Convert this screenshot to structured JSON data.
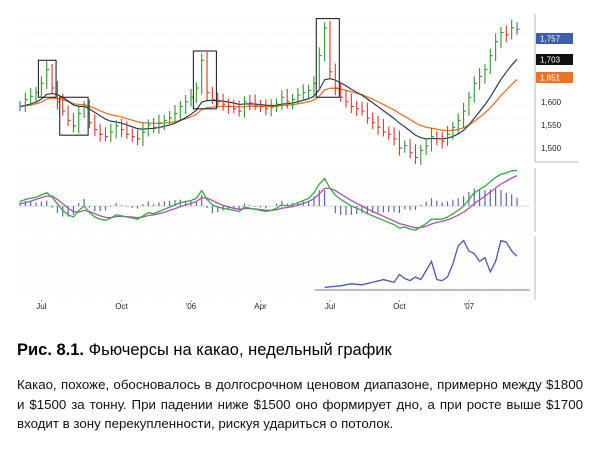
{
  "figure": {
    "label": "Рис. 8.1.",
    "title": "Фьючерсы на какао, недельный график",
    "description": "Какао, похоже, обосновалось в долгосрочном ценовом диапазоне, примерно между $1800 и $1500 за тонну. При падении ниже $1500 оно формирует дно, а при росте выше $1700 входит в зону перекупленности, рискуя удариться о потолок."
  },
  "chart_data": {
    "type": "line",
    "x_tick_labels": [
      "Jul",
      "Oct",
      "'06",
      "Apr",
      "Jul",
      "Oct",
      "'07"
    ],
    "price_axis": {
      "tick_labels": [
        "1,500",
        "1,550",
        "1,600"
      ],
      "ylim": [
        1470,
        1790
      ],
      "badges": [
        {
          "value": "1,757",
          "kind": "close"
        },
        {
          "value": "1,703",
          "kind": "slow-ma"
        },
        {
          "value": "1,651",
          "kind": "fast-ma"
        }
      ]
    },
    "colors": {
      "bar_up": "#2e9a2e",
      "bar_down": "#d9382a",
      "bar_neutral": "#4a5aa8",
      "ma_dark": "#1b2a4a",
      "ma_orange": "#e8742a",
      "osc_green": "#35a83b",
      "osc_purple": "#b04fb8",
      "osc_hist": "#5a68b0",
      "indicator_line": "#4658b0",
      "badge_close": "#3c5eac",
      "badge_slow": "#111111",
      "badge_fast": "#e8742a",
      "box": "#111111"
    },
    "weekly_closes": [
      1590,
      1605,
      1612,
      1620,
      1640,
      1670,
      1630,
      1600,
      1580,
      1560,
      1548,
      1575,
      1590,
      1555,
      1540,
      1530,
      1525,
      1535,
      1548,
      1540,
      1530,
      1525,
      1520,
      1535,
      1550,
      1545,
      1555,
      1560,
      1565,
      1575,
      1590,
      1600,
      1610,
      1630,
      1690,
      1620,
      1605,
      1600,
      1595,
      1590,
      1585,
      1580,
      1600,
      1598,
      1592,
      1590,
      1585,
      1588,
      1595,
      1610,
      1600,
      1605,
      1615,
      1620,
      1625,
      1640,
      1700,
      1760,
      1665,
      1630,
      1610,
      1600,
      1590,
      1585,
      1580,
      1565,
      1555,
      1545,
      1535,
      1530,
      1520,
      1500,
      1505,
      1490,
      1480,
      1495,
      1505,
      1525,
      1520,
      1515,
      1530,
      1545,
      1560,
      1580,
      1610,
      1640,
      1655,
      1670,
      1700,
      1730,
      1750,
      1745,
      1760,
      1757
    ],
    "weekly_bar_colors": [
      "b",
      "g",
      "g",
      "g",
      "g",
      "g",
      "r",
      "r",
      "r",
      "r",
      "r",
      "g",
      "g",
      "r",
      "r",
      "r",
      "r",
      "g",
      "g",
      "r",
      "r",
      "r",
      "r",
      "g",
      "g",
      "r",
      "g",
      "g",
      "g",
      "g",
      "g",
      "g",
      "g",
      "g",
      "g",
      "r",
      "r",
      "r",
      "r",
      "r",
      "r",
      "r",
      "g",
      "r",
      "r",
      "r",
      "r",
      "g",
      "g",
      "g",
      "r",
      "g",
      "g",
      "g",
      "g",
      "g",
      "g",
      "g",
      "r",
      "r",
      "r",
      "r",
      "r",
      "r",
      "r",
      "r",
      "r",
      "r",
      "r",
      "r",
      "r",
      "r",
      "g",
      "r",
      "r",
      "g",
      "g",
      "g",
      "r",
      "r",
      "g",
      "g",
      "g",
      "g",
      "g",
      "g",
      "g",
      "g",
      "g",
      "g",
      "g",
      "r",
      "g",
      "b"
    ],
    "oscillator_green": [
      0.2,
      0.3,
      0.35,
      0.4,
      0.5,
      0.6,
      0.4,
      0.1,
      -0.2,
      -0.4,
      -0.5,
      -0.2,
      0.0,
      -0.3,
      -0.5,
      -0.6,
      -0.65,
      -0.55,
      -0.4,
      -0.45,
      -0.5,
      -0.55,
      -0.6,
      -0.45,
      -0.3,
      -0.35,
      -0.25,
      -0.15,
      -0.05,
      0.05,
      0.15,
      0.2,
      0.25,
      0.35,
      0.7,
      0.3,
      0.05,
      -0.05,
      -0.1,
      -0.15,
      -0.2,
      -0.25,
      -0.05,
      -0.1,
      -0.15,
      -0.2,
      -0.25,
      -0.2,
      -0.1,
      0.05,
      0.0,
      0.05,
      0.15,
      0.25,
      0.35,
      0.6,
      1.0,
      1.25,
      0.8,
      0.5,
      0.3,
      0.15,
      0.0,
      -0.1,
      -0.2,
      -0.35,
      -0.45,
      -0.55,
      -0.65,
      -0.75,
      -0.85,
      -1.0,
      -0.95,
      -1.05,
      -1.1,
      -0.95,
      -0.8,
      -0.6,
      -0.6,
      -0.6,
      -0.5,
      -0.35,
      -0.2,
      0.0,
      0.3,
      0.6,
      0.75,
      0.9,
      1.1,
      1.3,
      1.45,
      1.5,
      1.6,
      1.62
    ],
    "oscillator_purple": [
      0.1,
      0.15,
      0.22,
      0.3,
      0.38,
      0.45,
      0.45,
      0.3,
      0.1,
      -0.1,
      -0.25,
      -0.28,
      -0.2,
      -0.25,
      -0.35,
      -0.45,
      -0.52,
      -0.53,
      -0.48,
      -0.47,
      -0.48,
      -0.5,
      -0.53,
      -0.5,
      -0.43,
      -0.4,
      -0.35,
      -0.28,
      -0.2,
      -0.12,
      -0.03,
      0.05,
      0.12,
      0.2,
      0.38,
      0.36,
      0.25,
      0.13,
      0.03,
      -0.05,
      -0.1,
      -0.15,
      -0.12,
      -0.12,
      -0.13,
      -0.16,
      -0.19,
      -0.2,
      -0.17,
      -0.1,
      -0.07,
      -0.03,
      0.04,
      0.12,
      0.2,
      0.33,
      0.55,
      0.8,
      0.8,
      0.7,
      0.55,
      0.4,
      0.25,
      0.12,
      0.0,
      -0.13,
      -0.25,
      -0.36,
      -0.47,
      -0.58,
      -0.68,
      -0.8,
      -0.86,
      -0.93,
      -0.99,
      -0.98,
      -0.92,
      -0.82,
      -0.75,
      -0.7,
      -0.63,
      -0.53,
      -0.42,
      -0.28,
      -0.1,
      0.1,
      0.28,
      0.45,
      0.63,
      0.82,
      1.0,
      1.13,
      1.27,
      1.38
    ],
    "oscillator_histogram": [
      0.1,
      0.15,
      0.13,
      0.1,
      0.12,
      0.15,
      -0.05,
      -0.2,
      -0.3,
      -0.3,
      -0.25,
      0.08,
      0.2,
      -0.05,
      -0.15,
      -0.15,
      -0.13,
      -0.02,
      0.08,
      0.02,
      -0.02,
      -0.05,
      -0.07,
      0.05,
      0.13,
      0.05,
      0.1,
      0.13,
      0.15,
      0.17,
      0.18,
      0.15,
      0.13,
      0.15,
      0.32,
      -0.06,
      -0.2,
      -0.18,
      -0.13,
      -0.1,
      -0.1,
      -0.1,
      0.07,
      0.02,
      -0.02,
      -0.04,
      -0.06,
      0.0,
      0.07,
      0.15,
      0.07,
      0.08,
      0.11,
      0.13,
      0.15,
      0.27,
      0.45,
      0.45,
      0.0,
      -0.2,
      -0.25,
      -0.25,
      -0.25,
      -0.22,
      -0.2,
      -0.22,
      -0.2,
      -0.19,
      -0.18,
      -0.17,
      -0.17,
      -0.2,
      -0.09,
      -0.12,
      -0.11,
      0.03,
      0.12,
      0.22,
      0.15,
      0.1,
      0.13,
      0.18,
      0.22,
      0.28,
      0.4,
      0.5,
      0.47,
      0.45,
      0.47,
      0.48,
      0.45,
      0.37,
      0.33,
      0.24
    ],
    "lower_indicator": [
      {
        "week": 57,
        "value": 0.05
      },
      {
        "week": 60,
        "value": 0.08
      },
      {
        "week": 62,
        "value": 0.12
      },
      {
        "week": 64,
        "value": 0.1
      },
      {
        "week": 66,
        "value": 0.15
      },
      {
        "week": 68,
        "value": 0.2
      },
      {
        "week": 70,
        "value": 0.15
      },
      {
        "week": 71,
        "value": 0.3
      },
      {
        "week": 72,
        "value": 0.22
      },
      {
        "week": 73,
        "value": 0.18
      },
      {
        "week": 74,
        "value": 0.25
      },
      {
        "week": 75,
        "value": 0.2
      },
      {
        "week": 77,
        "value": 0.55
      },
      {
        "week": 78,
        "value": 0.2
      },
      {
        "week": 79,
        "value": 0.18
      },
      {
        "week": 80,
        "value": 0.25
      },
      {
        "week": 81,
        "value": 0.5
      },
      {
        "week": 82,
        "value": 0.85
      },
      {
        "week": 83,
        "value": 0.95
      },
      {
        "week": 84,
        "value": 0.75
      },
      {
        "week": 85,
        "value": 0.7
      },
      {
        "week": 86,
        "value": 0.55
      },
      {
        "week": 87,
        "value": 0.62
      },
      {
        "week": 88,
        "value": 0.35
      },
      {
        "week": 89,
        "value": 0.55
      },
      {
        "week": 90,
        "value": 0.95
      },
      {
        "week": 91,
        "value": 0.92
      },
      {
        "week": 92,
        "value": 0.75
      },
      {
        "week": 93,
        "value": 0.65
      }
    ]
  }
}
